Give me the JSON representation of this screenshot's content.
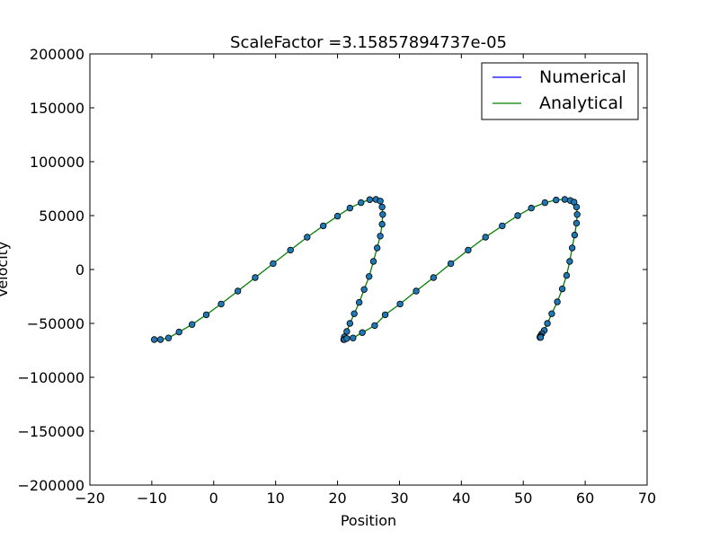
{
  "chart_data": {
    "type": "scatter",
    "title": "ScaleFactor =3.15857894737e-05",
    "xlabel": "Position",
    "ylabel": "Velocity",
    "xlim": [
      -20,
      70
    ],
    "ylim": [
      -200000,
      200000
    ],
    "xticks": [
      -20,
      -10,
      0,
      10,
      20,
      30,
      40,
      50,
      60,
      70
    ],
    "yticks": [
      -200000,
      -150000,
      -100000,
      -50000,
      0,
      50000,
      100000,
      150000,
      200000
    ],
    "xtick_labels": [
      "−20",
      "−10",
      "0",
      "10",
      "20",
      "30",
      "40",
      "50",
      "60",
      "70"
    ],
    "ytick_labels": [
      "−200000",
      "−150000",
      "−100000",
      "−50000",
      "0",
      "50000",
      "100000",
      "150000",
      "200000"
    ],
    "grid": false,
    "legend_position": "top-right",
    "series": [
      {
        "name": "Numerical",
        "kind": "markers-and-line",
        "color": "#0000ff",
        "marker_color": "#1f77b4",
        "x": [
          -9.6,
          -8.6,
          -7.3,
          -5.6,
          -3.5,
          -1.2,
          1.2,
          3.9,
          6.7,
          9.6,
          12.4,
          15.1,
          17.7,
          20.0,
          22.0,
          23.8,
          25.2,
          26.2,
          26.9,
          27.2,
          27.3,
          27.2,
          26.9,
          26.4,
          25.8,
          25.1,
          24.3,
          23.5,
          22.7,
          22.0,
          21.5,
          21.1,
          21.0,
          21.1,
          21.5,
          22.5,
          24.0,
          26.0,
          27.7,
          30.1,
          32.7,
          35.5,
          38.3,
          41.1,
          43.9,
          46.6,
          49.1,
          51.3,
          53.5,
          55.3,
          56.7,
          57.6,
          58.2,
          58.6,
          58.7,
          58.6,
          58.3,
          57.9,
          57.5,
          57.0,
          56.3,
          55.5,
          54.6,
          53.9,
          53.4,
          53.0,
          52.8,
          52.7,
          52.7,
          52.8
        ],
        "y": [
          -65000,
          -65000,
          -63500,
          -58000,
          -51000,
          -42000,
          -32000,
          -20000,
          -7500,
          5500,
          18000,
          30000,
          40500,
          49500,
          57000,
          62000,
          64800,
          65000,
          63500,
          58000,
          51000,
          42000,
          31000,
          20000,
          7500,
          -6500,
          -18500,
          -30500,
          -41000,
          -50000,
          -57500,
          -62500,
          -65000,
          -65000,
          -64000,
          -63500,
          -58500,
          -52000,
          -42000,
          -32000,
          -20000,
          -7500,
          5500,
          18000,
          30000,
          40500,
          50000,
          57000,
          62000,
          64500,
          65000,
          64000,
          62500,
          58000,
          51000,
          43000,
          32000,
          20000,
          7500,
          -5500,
          -18000,
          -30000,
          -41000,
          -50000,
          -56500,
          -59500,
          -61500,
          -62500,
          -63000,
          -63000
        ]
      },
      {
        "name": "Analytical",
        "kind": "line",
        "color": "#008000"
      }
    ]
  }
}
